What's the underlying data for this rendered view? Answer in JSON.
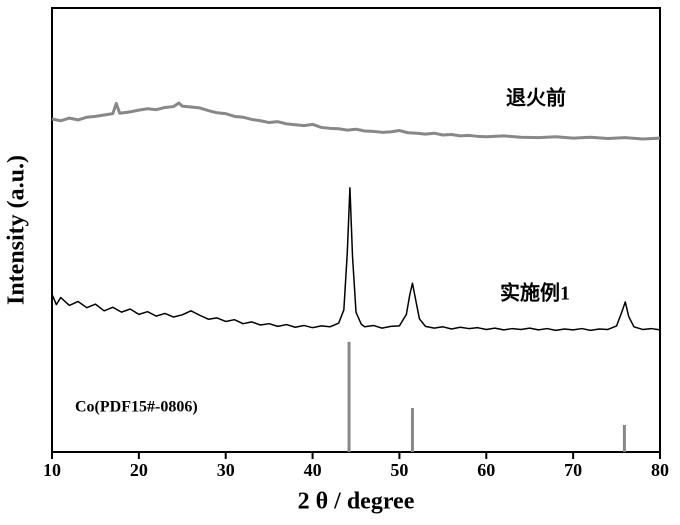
{
  "chart_data": {
    "type": "line",
    "xlabel": "2 θ / degree",
    "ylabel": "Intensity (a.u.)",
    "xlim": [
      10,
      80
    ],
    "xticks": [
      10,
      20,
      30,
      40,
      50,
      60,
      70,
      80
    ],
    "ylim": [
      0,
      100
    ],
    "annotations": [
      "退火前",
      "实施例1",
      "Co(PDF15#-0806)"
    ],
    "series": [
      {
        "color": "#888888",
        "x": [
          10,
          11,
          12,
          13,
          14,
          15,
          16,
          17,
          17.4,
          17.8,
          19,
          20,
          21,
          22,
          23,
          24,
          24.6,
          25,
          26,
          27,
          28,
          29,
          30,
          31,
          32,
          33,
          34,
          35,
          36,
          37,
          38,
          39,
          40,
          41,
          42,
          43,
          44,
          45,
          46,
          47,
          48,
          49,
          50,
          51,
          52,
          53,
          54,
          55,
          56,
          57,
          58,
          59,
          60,
          62,
          64,
          66,
          68,
          70,
          72,
          74,
          76,
          78,
          80
        ],
        "values": [
          75.0,
          74.6,
          75.2,
          74.8,
          75.4,
          75.6,
          75.9,
          76.2,
          78.5,
          76.3,
          76.6,
          77.0,
          77.3,
          77.1,
          77.6,
          77.8,
          78.6,
          77.9,
          77.7,
          77.5,
          76.9,
          76.4,
          76.2,
          75.6,
          75.4,
          74.9,
          74.6,
          74.2,
          74.4,
          73.9,
          73.7,
          73.5,
          73.8,
          73.1,
          72.9,
          72.8,
          72.5,
          72.7,
          72.3,
          72.2,
          72.0,
          72.1,
          72.4,
          71.9,
          71.8,
          71.6,
          71.8,
          71.4,
          71.5,
          71.2,
          71.3,
          71.1,
          71.0,
          71.2,
          70.9,
          70.8,
          71.0,
          70.7,
          70.9,
          70.6,
          70.8,
          70.5,
          70.7
        ]
      },
      {
        "color": "#000000",
        "x": [
          10,
          10.5,
          11,
          12,
          13,
          14,
          15,
          16,
          17,
          18,
          19,
          20,
          21,
          22,
          23,
          24,
          25,
          26,
          27,
          28,
          29,
          30,
          31,
          32,
          33,
          34,
          35,
          36,
          37,
          38,
          39,
          40,
          41,
          42,
          43,
          43.6,
          44.0,
          44.3,
          44.6,
          45.0,
          45.6,
          46,
          47,
          48,
          49,
          50,
          50.8,
          51.2,
          51.5,
          51.8,
          52.3,
          53,
          54,
          55,
          56,
          57,
          58,
          59,
          60,
          61,
          62,
          63,
          64,
          65,
          66,
          67,
          68,
          69,
          70,
          71,
          72,
          73,
          74,
          75,
          75.6,
          76.0,
          76.4,
          77,
          78,
          79,
          80
        ],
        "values": [
          35.5,
          33.2,
          34.8,
          33.0,
          33.9,
          32.5,
          33.3,
          31.8,
          32.6,
          31.5,
          32.2,
          31.0,
          31.6,
          30.6,
          31.2,
          30.4,
          30.9,
          31.8,
          30.8,
          29.9,
          30.2,
          29.4,
          29.8,
          28.9,
          29.3,
          28.6,
          28.9,
          28.3,
          28.7,
          28.1,
          28.5,
          28.0,
          28.4,
          28.2,
          29.0,
          32.0,
          45.0,
          59.5,
          44.0,
          31.5,
          28.8,
          28.2,
          28.5,
          27.9,
          28.3,
          28.4,
          31.0,
          35.5,
          38.0,
          35.0,
          30.0,
          28.3,
          27.9,
          28.2,
          27.7,
          28.1,
          27.8,
          28.0,
          27.6,
          27.9,
          27.5,
          27.8,
          27.6,
          27.9,
          27.5,
          27.8,
          27.4,
          27.7,
          27.5,
          27.8,
          27.4,
          27.7,
          27.6,
          28.4,
          31.5,
          33.8,
          30.5,
          28.2,
          27.6,
          27.8,
          27.5
        ]
      },
      {
        "color": "#888888",
        "style": "stick",
        "x": [
          44.2,
          51.5,
          75.9
        ],
        "values": [
          24.8,
          9.9,
          6.1
        ]
      }
    ]
  }
}
